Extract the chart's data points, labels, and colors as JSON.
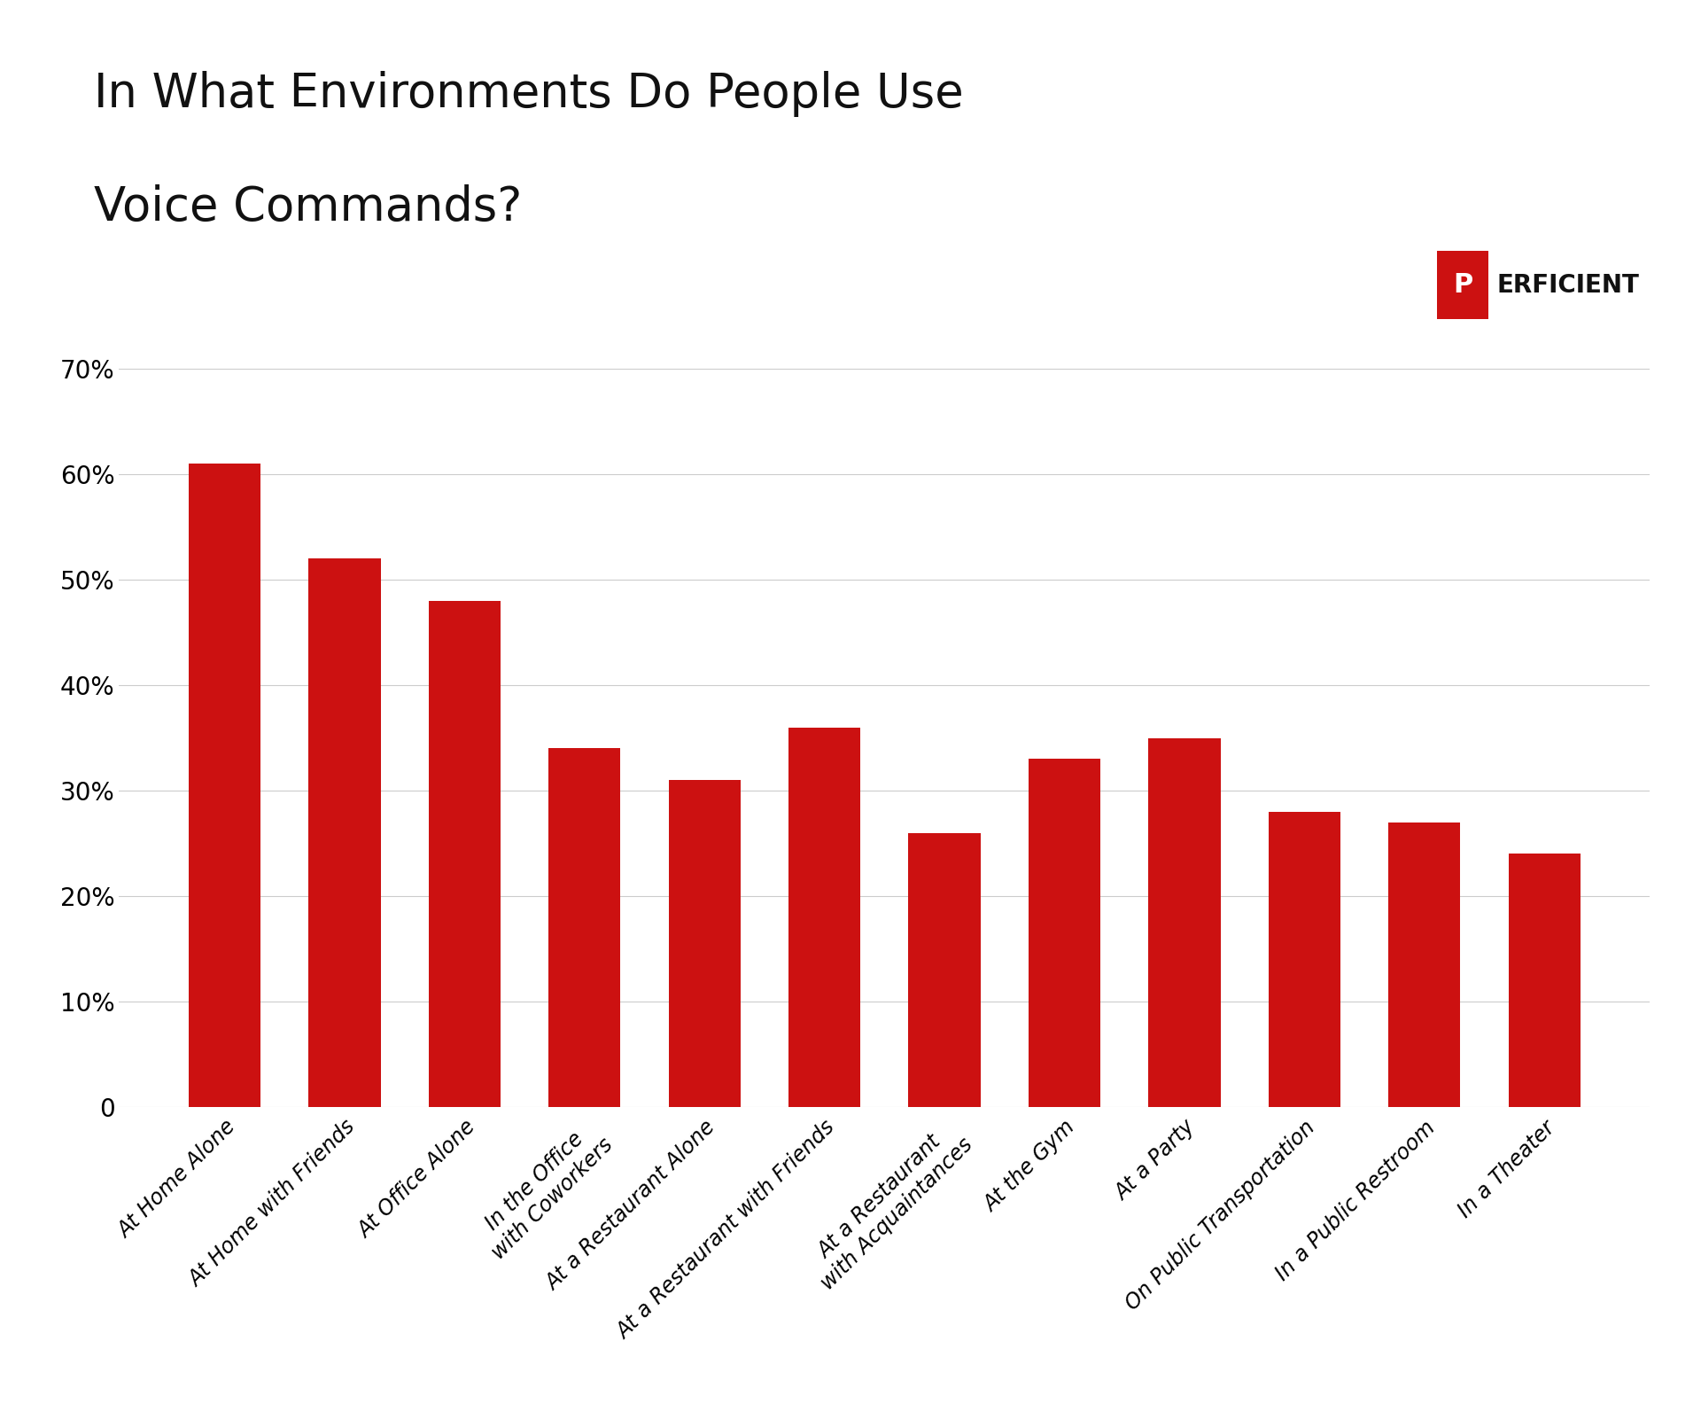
{
  "title_line1": "In What Environments Do People Use",
  "title_line2": "Voice Commands?",
  "categories": [
    "At Home Alone",
    "At Home with Friends",
    "At Office Alone",
    "In the Office\nwith Coworkers",
    "At a Restaurant Alone",
    "At a Restaurant with Friends",
    "At a Restaurant\nwith Acquaintances",
    "At the Gym",
    "At a Party",
    "On Public Transportation",
    "In a Public Restroom",
    "In a Theater"
  ],
  "values": [
    61,
    52,
    48,
    34,
    31,
    36,
    26,
    33,
    35,
    28,
    27,
    24
  ],
  "bar_color": "#CC1111",
  "background_color": "#FFFFFF",
  "title_fontsize": 38,
  "tick_fontsize": 17,
  "ylim": [
    0,
    70
  ],
  "yticks": [
    0,
    10,
    20,
    30,
    40,
    50,
    60,
    70
  ],
  "logo_text": "ERFICIENT",
  "logo_P": "P",
  "logo_color": "#CC1111",
  "logo_fontsize": 20
}
